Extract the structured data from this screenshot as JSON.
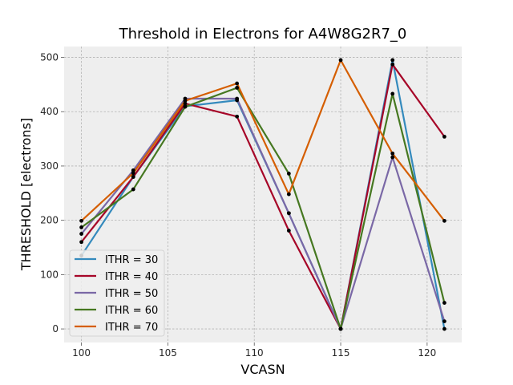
{
  "chart_data": {
    "type": "line",
    "title": "Threshold in Electrons for A4W8G2R7_0",
    "xlabel": "VCASN",
    "ylabel": "THRESHOLD [electrons]",
    "xlim": [
      99,
      122
    ],
    "ylim": [
      -25,
      520
    ],
    "grid": true,
    "legend_position": "lower-left",
    "x_ticks": [
      100,
      105,
      110,
      115,
      120
    ],
    "y_ticks": [
      0,
      100,
      200,
      300,
      400,
      500
    ],
    "x": [
      100,
      103,
      106,
      109,
      112,
      115,
      118,
      121
    ],
    "series": [
      {
        "name": "ITHR = 30",
        "color": "#348ABD",
        "values": [
          135,
          280,
          410,
          421,
          213,
          0,
          495,
          0
        ]
      },
      {
        "name": "ITHR = 40",
        "color": "#A60628",
        "values": [
          160,
          280,
          415,
          391,
          181,
          0,
          487,
          354
        ]
      },
      {
        "name": "ITHR = 50",
        "color": "#7A68A6",
        "values": [
          175,
          292,
          424,
          424,
          213,
          0,
          316,
          14
        ]
      },
      {
        "name": "ITHR = 60",
        "color": "#467821",
        "values": [
          187,
          257,
          409,
          444,
          286,
          0,
          433,
          48
        ]
      },
      {
        "name": "ITHR = 70",
        "color": "#D55E00",
        "values": [
          199,
          287,
          420,
          452,
          248,
          495,
          323,
          199
        ]
      }
    ]
  }
}
